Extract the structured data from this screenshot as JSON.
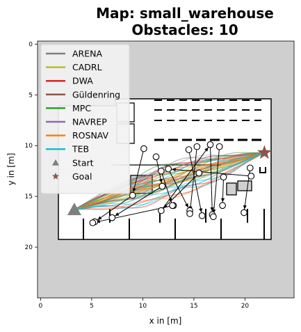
{
  "chart_data": {
    "type": "map-trajectories",
    "title_line1": "Map: small_warehouse",
    "title_line2": "Obstacles: 10",
    "xlabel": "x in [m]",
    "ylabel": "y in [m]",
    "xlim": [
      -0.3,
      24.8
    ],
    "ylim": [
      25,
      -0.3
    ],
    "xticks": [
      0,
      5,
      10,
      15,
      20
    ],
    "yticks": [
      0,
      5,
      10,
      15,
      20
    ],
    "background_color": "#cfcfcf",
    "legend_placement": "top-left",
    "legend": [
      {
        "label": "ARENA",
        "color": "#7f7f7f",
        "kind": "line"
      },
      {
        "label": "CADRL",
        "color": "#bcbd22",
        "kind": "line"
      },
      {
        "label": "DWA",
        "color": "#d62728",
        "kind": "line"
      },
      {
        "label": "Güldenring",
        "color": "#8c564b",
        "kind": "line"
      },
      {
        "label": "MPC",
        "color": "#2ca02c",
        "kind": "line"
      },
      {
        "label": "NAVREP",
        "color": "#9467bd",
        "kind": "line"
      },
      {
        "label": "ROSNAV",
        "color": "#ff7f0e",
        "kind": "line"
      },
      {
        "label": "TEB",
        "color": "#17becf",
        "kind": "line"
      },
      {
        "label": "Start",
        "color": "#7f7f7f",
        "kind": "triangle"
      },
      {
        "label": "Goal",
        "color": "#8c564b",
        "kind": "star"
      }
    ],
    "start": {
      "x": 3.3,
      "y": 16.3
    },
    "goal": {
      "x": 21.9,
      "y": 10.7
    },
    "obstacles": [
      {
        "x": 10.1,
        "y": 10.3
      },
      {
        "x": 11.3,
        "y": 11.1
      },
      {
        "x": 11.8,
        "y": 12.5
      },
      {
        "x": 12.5,
        "y": 12.3
      },
      {
        "x": 14.5,
        "y": 10.4
      },
      {
        "x": 15.3,
        "y": 10.1
      },
      {
        "x": 16.6,
        "y": 9.9
      },
      {
        "x": 17.5,
        "y": 10.1
      },
      {
        "x": 15.5,
        "y": 12.7
      },
      {
        "x": 17.9,
        "y": 13.1
      },
      {
        "x": 20.5,
        "y": 12.2
      },
      {
        "x": 20.6,
        "y": 13.0
      },
      {
        "x": 9.0,
        "y": 14.9
      },
      {
        "x": 11.9,
        "y": 14.0
      },
      {
        "x": 13.0,
        "y": 15.9
      },
      {
        "x": 12.9,
        "y": 15.9
      },
      {
        "x": 11.8,
        "y": 16.4
      },
      {
        "x": 14.6,
        "y": 16.4
      },
      {
        "x": 14.6,
        "y": 16.7
      },
      {
        "x": 15.8,
        "y": 16.9
      },
      {
        "x": 16.8,
        "y": 16.8
      },
      {
        "x": 16.9,
        "y": 17.0
      },
      {
        "x": 17.8,
        "y": 15.9
      },
      {
        "x": 19.9,
        "y": 16.6
      },
      {
        "x": 5.3,
        "y": 17.5
      },
      {
        "x": 5.1,
        "y": 17.6
      },
      {
        "x": 7.0,
        "y": 17.1
      }
    ]
  }
}
